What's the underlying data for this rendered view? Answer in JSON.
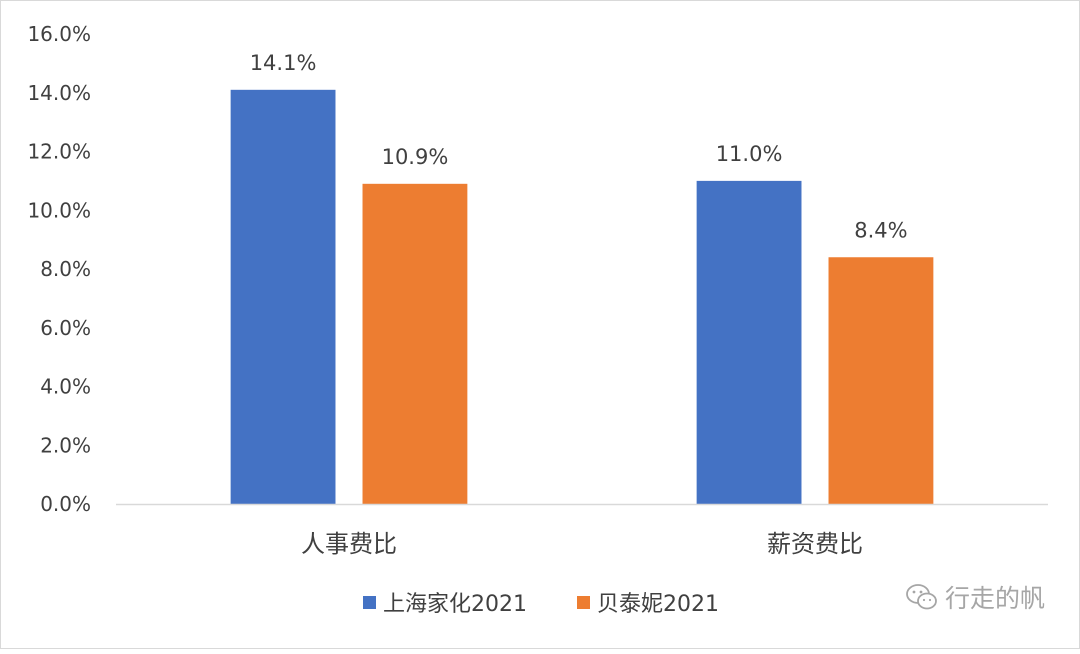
{
  "chart_data": {
    "type": "bar",
    "categories": [
      "人事费比",
      "薪资费比"
    ],
    "series": [
      {
        "name": "上海家化2021",
        "values": [
          14.1,
          11.0
        ],
        "labels": [
          "14.1%",
          "11.0%"
        ],
        "color": "#4472c4"
      },
      {
        "name": "贝泰妮2021",
        "values": [
          10.9,
          8.4
        ],
        "labels": [
          "10.9%",
          "8.4%"
        ],
        "color": "#ed7d31"
      }
    ],
    "ylim": [
      0,
      16
    ],
    "yticks": [
      "0.0%",
      "2.0%",
      "4.0%",
      "6.0%",
      "8.0%",
      "10.0%",
      "12.0%",
      "14.0%",
      "16.0%"
    ],
    "title": "",
    "xlabel": "",
    "ylabel": "",
    "grid": false,
    "legend": "bottom-center"
  },
  "watermark": {
    "text": "行走的帆",
    "icon": "wechat-icon"
  },
  "colors": {
    "axis": "#d9d9d9",
    "text": "#404040",
    "watermark": "#a6a6a6"
  }
}
